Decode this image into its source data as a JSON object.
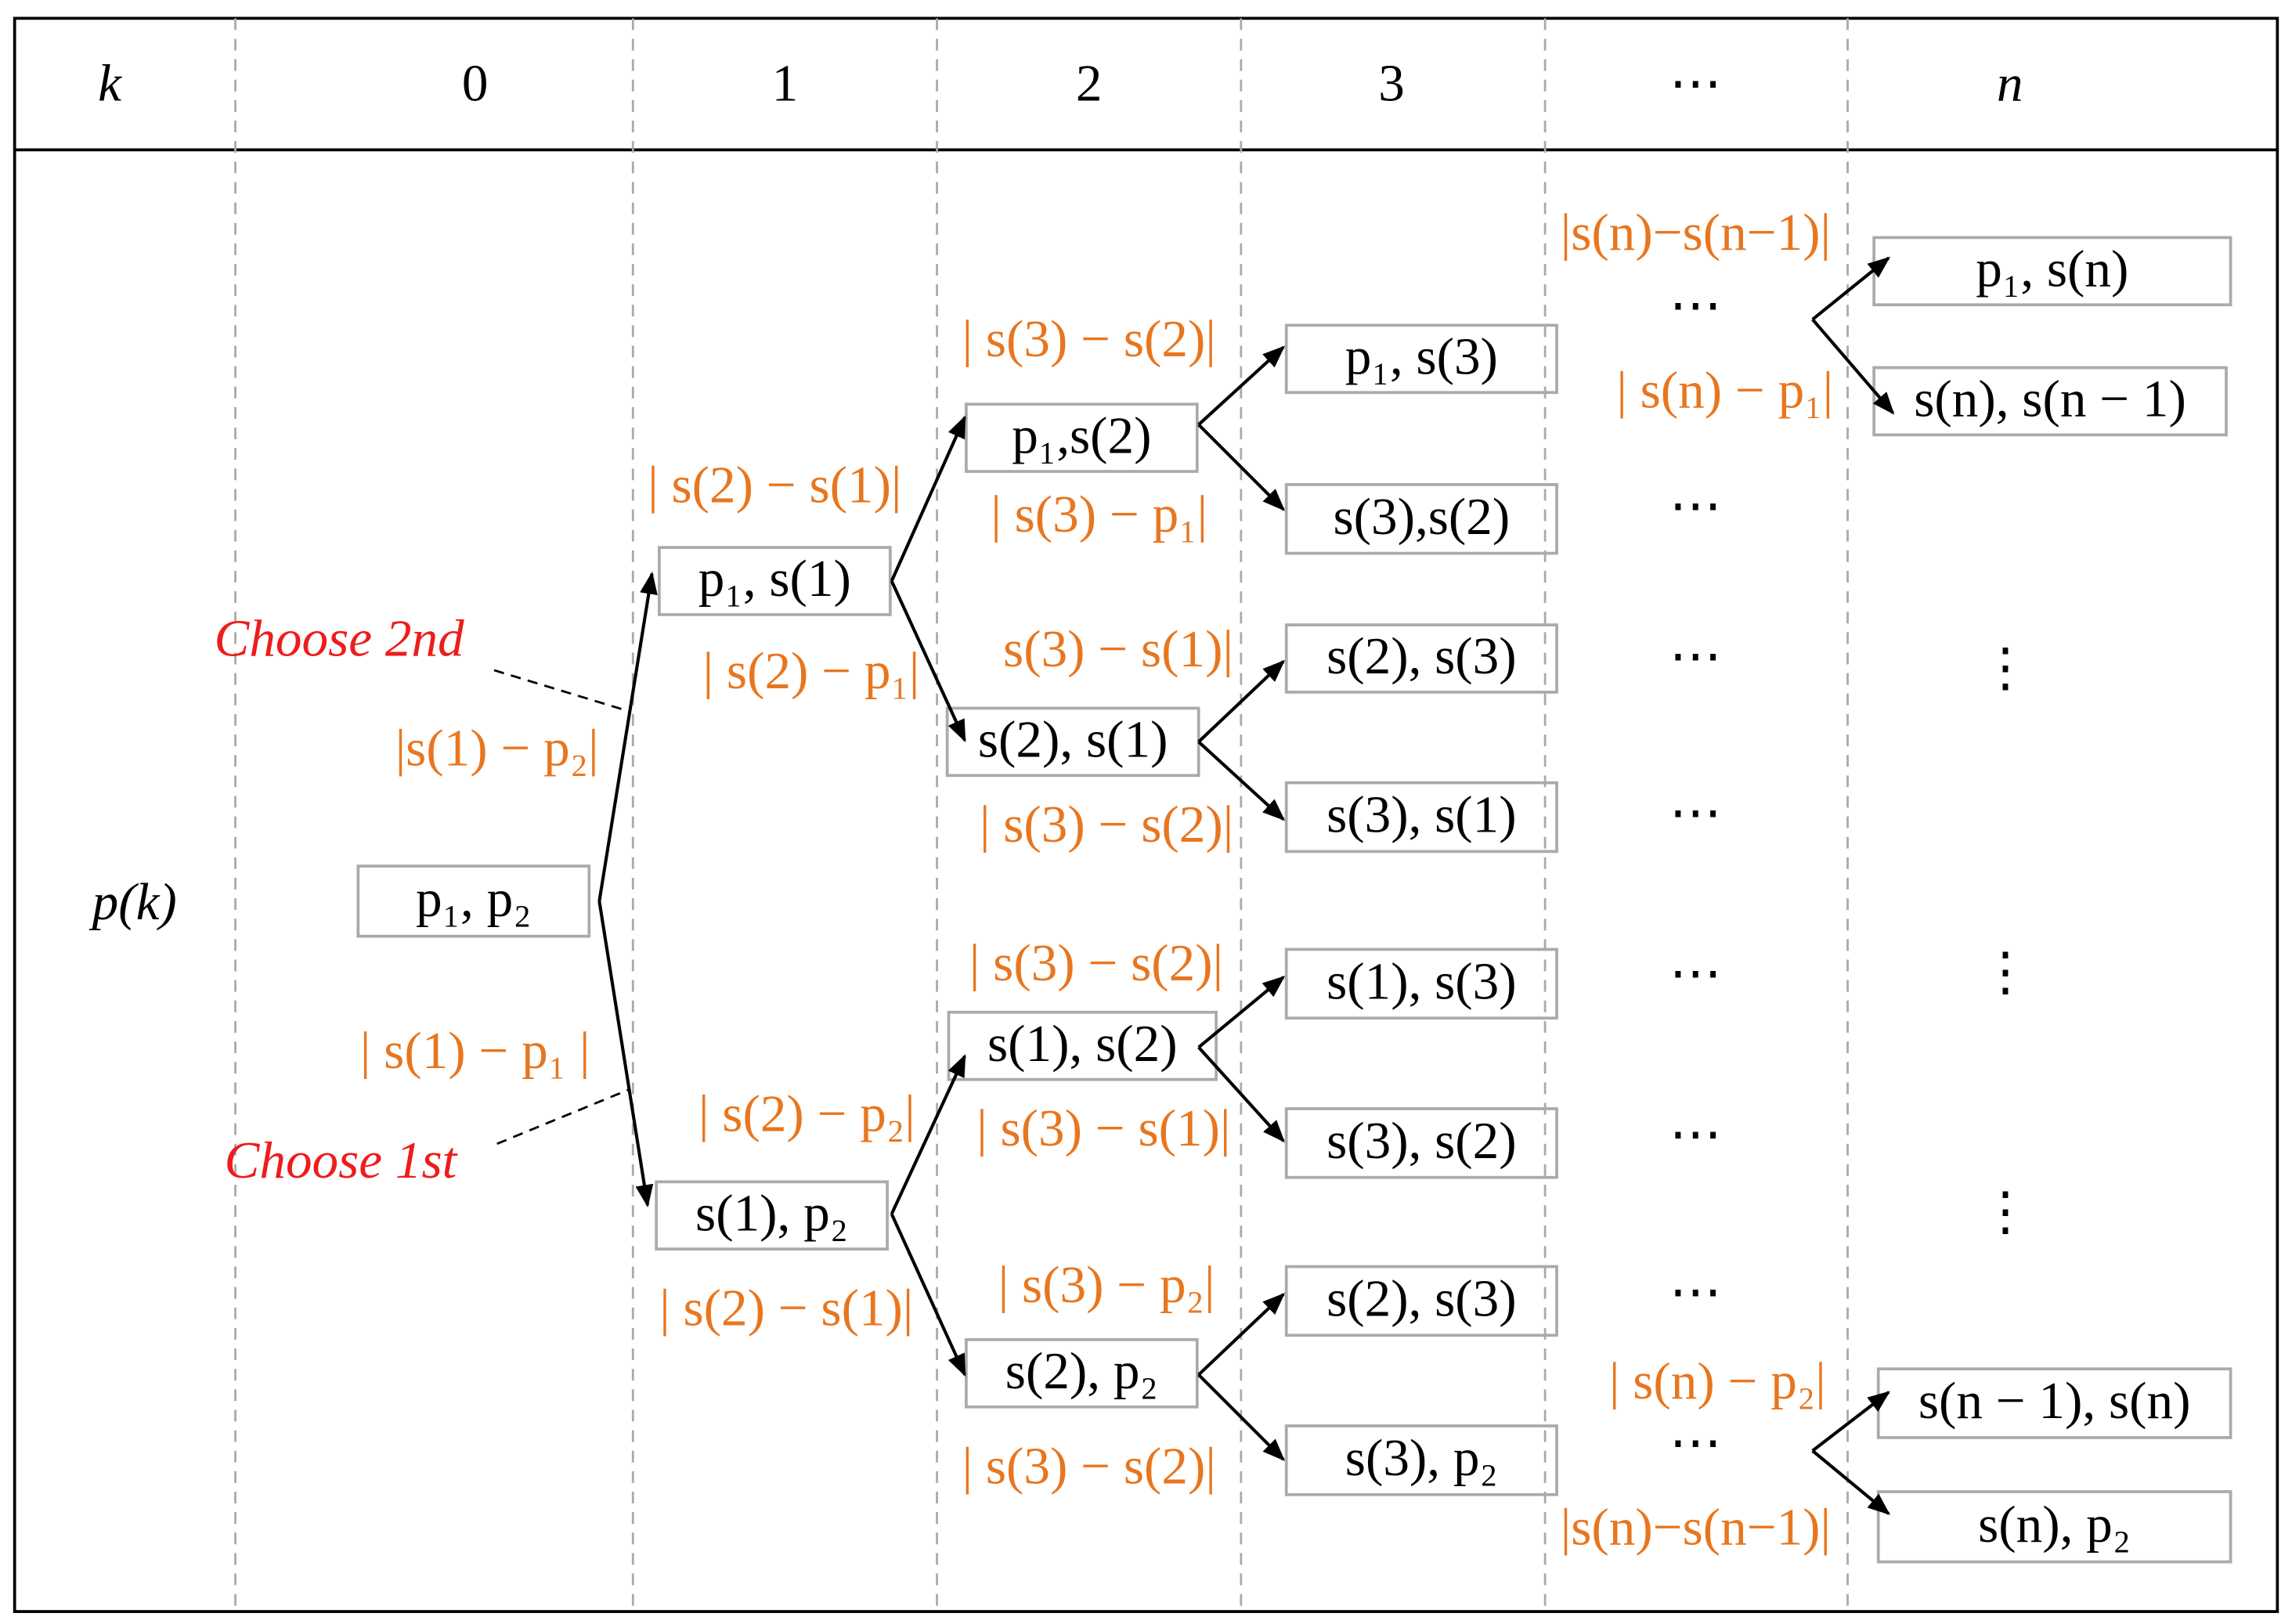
{
  "header": {
    "columns": [
      "k",
      "0",
      "1",
      "2",
      "3",
      "⋯",
      "n"
    ]
  },
  "row_label": "p(k)",
  "nodes": [
    {
      "label": "p₁, p₂"
    },
    {
      "label": "p₁, s(1)"
    },
    {
      "label": "s(1), p₂"
    },
    {
      "label": "p₁,s(2)"
    },
    {
      "label": "s(2), s(1)"
    },
    {
      "label": "s(1), s(2)"
    },
    {
      "label": "s(2), p₂"
    },
    {
      "label": "p₁, s(3)"
    },
    {
      "label": "s(3),s(2)"
    },
    {
      "label": "s(2), s(3)"
    },
    {
      "label": "s(3), s(1)"
    },
    {
      "label": "s(1), s(3)"
    },
    {
      "label": "s(3), s(2)"
    },
    {
      "label": "s(2), s(3)"
    },
    {
      "label": "s(3), p₂"
    },
    {
      "label": "p₁, s(n)"
    },
    {
      "label": "s(n), s(n − 1)"
    },
    {
      "label": "s(n − 1), s(n)"
    },
    {
      "label": "s(n), p₂"
    }
  ],
  "edge_labels": [
    "|s(1) − p₂|",
    "| s(1) − p₁ |",
    "| s(2) − s(1)|",
    "| s(2) − p₁|",
    "| s(2) − p₂|",
    "| s(2) − s(1)|",
    "| s(3) − s(2)|",
    "| s(3) − p₁|",
    "s(3) − s(1)|",
    "| s(3) − s(2)|",
    "| s(3) − s(2)|",
    "| s(3) − s(1)|",
    "| s(3) − p₂|",
    "| s(3) − s(2)|",
    "|s(n)−s(n−1)|",
    "| s(n) − p₁|",
    "| s(n) − p₂|",
    "|s(n)−s(n−1)|"
  ],
  "annotations": [
    "Choose 2nd",
    "Choose 1st"
  ],
  "ellipses": [
    "⋯",
    "⋯",
    "⋯",
    "⋯",
    "⋯",
    "⋯",
    "⋯",
    "⋯",
    "⋮",
    "⋮",
    "⋮"
  ]
}
